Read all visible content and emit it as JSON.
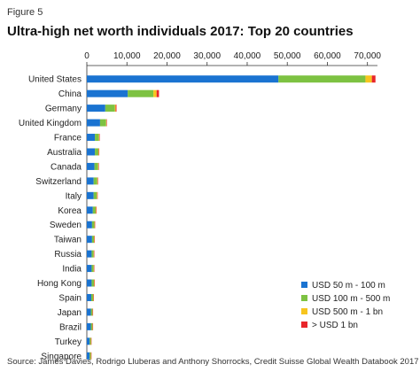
{
  "figure_label": "Figure 5",
  "chart_data": {
    "type": "bar",
    "orientation": "horizontal",
    "stacked": true,
    "title": "Ultra-high net worth individuals 2017: Top 20 countries",
    "source": "Source: James Davies, Rodrigo Lluberas and Anthony Shorrocks, Credit Suisse Global Wealth Databook 2017",
    "xlim": [
      0,
      72500
    ],
    "xticks": [
      0,
      10000,
      20000,
      30000,
      40000,
      50000,
      60000,
      70000
    ],
    "xtick_labels": [
      "0",
      "10,000",
      "20,000",
      "30,000",
      "40,000",
      "50,000",
      "60,000",
      "70,000"
    ],
    "xaxis_position": "top",
    "grid": false,
    "legend_position": "bottom-right",
    "categories": [
      "United States",
      "China",
      "Germany",
      "United Kingdom",
      "France",
      "Australia",
      "Canada",
      "Switzerland",
      "Italy",
      "Korea",
      "Sweden",
      "Taiwan",
      "Russia",
      "India",
      "Hong Kong",
      "Spain",
      "Japan",
      "Brazil",
      "Turkey",
      "Singapore"
    ],
    "series": [
      {
        "name": "USD 50 m - 100 m",
        "color": "#1a73d1",
        "values": [
          47800,
          10200,
          4600,
          3300,
          2000,
          2000,
          1900,
          1700,
          1700,
          1500,
          1300,
          1300,
          1200,
          1200,
          1200,
          1100,
          1000,
          1000,
          700,
          700
        ]
      },
      {
        "name": "USD 100 m - 500 m",
        "color": "#7dc242",
        "values": [
          21700,
          6400,
          2400,
          1500,
          1000,
          900,
          900,
          900,
          800,
          700,
          600,
          500,
          500,
          500,
          600,
          500,
          400,
          400,
          300,
          300
        ]
      },
      {
        "name": "USD 500 m - 1 bn",
        "color": "#f7c51e",
        "values": [
          1600,
          800,
          200,
          100,
          100,
          100,
          100,
          100,
          100,
          100,
          50,
          50,
          50,
          50,
          50,
          50,
          50,
          50,
          50,
          50
        ]
      },
      {
        "name": "> USD 1 bn",
        "color": "#e8262b",
        "values": [
          900,
          600,
          200,
          100,
          50,
          50,
          50,
          100,
          50,
          50,
          50,
          50,
          100,
          50,
          50,
          50,
          50,
          50,
          50,
          50
        ]
      }
    ]
  }
}
